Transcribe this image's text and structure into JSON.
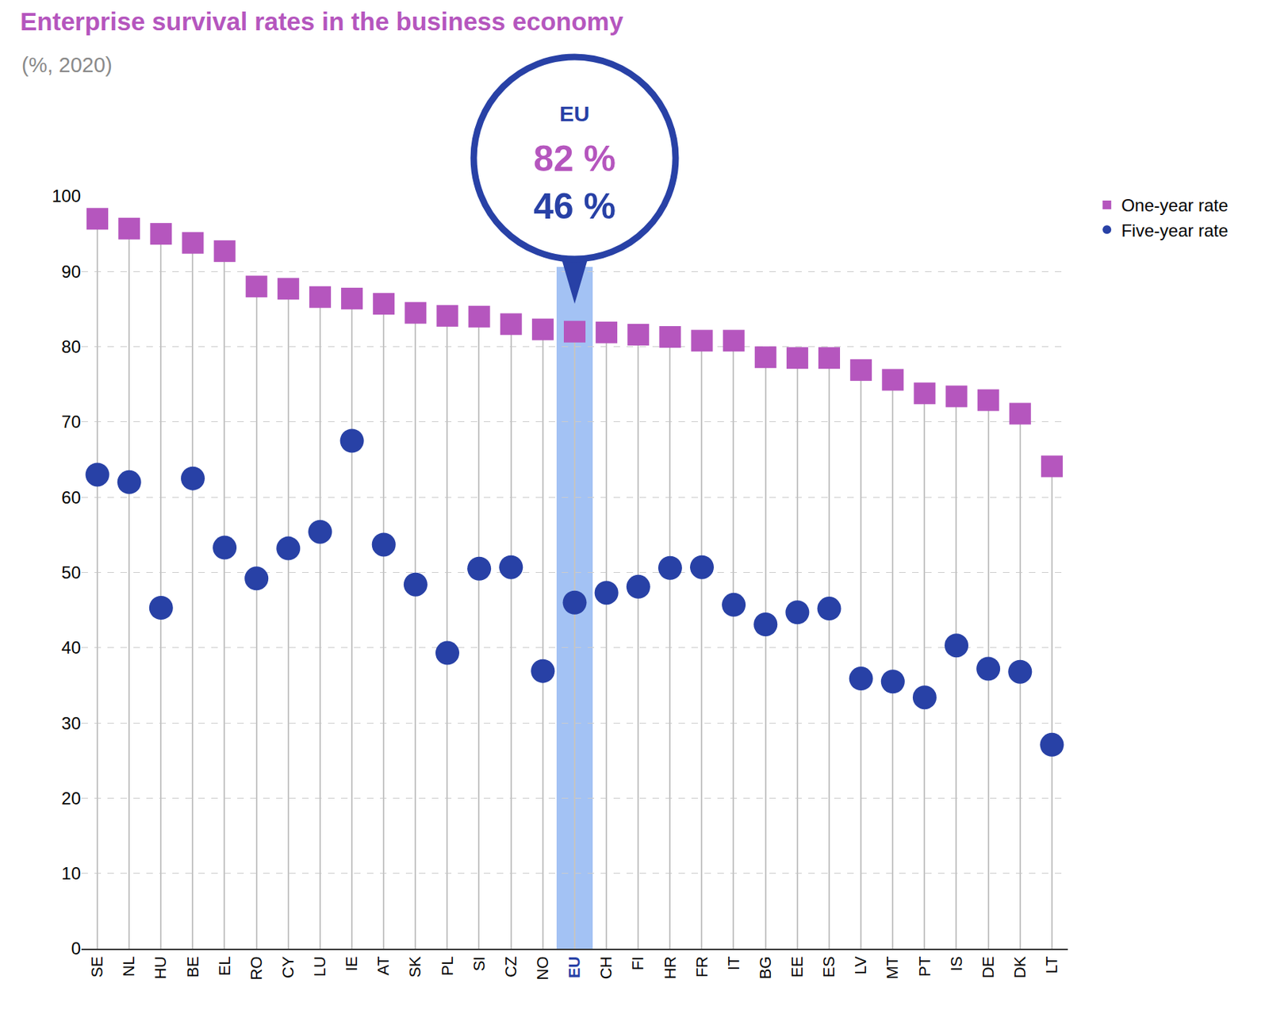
{
  "chart_data": {
    "type": "scatter",
    "title": "Enterprise survival rates in the business economy",
    "subtitle": "(%, 2020)",
    "categories": [
      "SE",
      "NL",
      "HU",
      "BE",
      "EL",
      "RO",
      "CY",
      "LU",
      "IE",
      "AT",
      "SK",
      "PL",
      "SI",
      "CZ",
      "NO",
      "EU",
      "CH",
      "FI",
      "HR",
      "FR",
      "IT",
      "BG",
      "EE",
      "ES",
      "LV",
      "MT",
      "PT",
      "IS",
      "DE",
      "DK",
      "LT"
    ],
    "series": [
      {
        "name": "One-year rate",
        "color": "#b556be",
        "marker": "square",
        "values": [
          97,
          95.7,
          95,
          93.8,
          92.7,
          88,
          87.7,
          86.6,
          86.4,
          85.7,
          84.5,
          84.1,
          84,
          83,
          82.3,
          82,
          81.9,
          81.6,
          81.3,
          80.8,
          80.8,
          78.6,
          78.5,
          78.5,
          76.9,
          75.6,
          73.8,
          73.4,
          72.9,
          71.1,
          64.1
        ]
      },
      {
        "name": "Five-year rate",
        "color": "#2841a6",
        "marker": "circle",
        "values": [
          63,
          62,
          45.3,
          62.5,
          53.3,
          49.2,
          53.2,
          55.4,
          67.5,
          53.7,
          48.4,
          39.3,
          50.5,
          50.7,
          36.9,
          46,
          47.3,
          48.1,
          50.6,
          50.7,
          45.7,
          43.1,
          44.7,
          45.2,
          35.9,
          35.5,
          33.4,
          40.3,
          37.2,
          36.8,
          27.1
        ]
      }
    ],
    "ylim": [
      0,
      100
    ],
    "yticks": [
      0,
      10,
      20,
      30,
      40,
      50,
      60,
      70,
      80,
      90,
      100
    ],
    "grid": true,
    "legend": "right",
    "callout": {
      "category": "EU",
      "texts": [
        "82 %",
        "46 %"
      ]
    }
  }
}
